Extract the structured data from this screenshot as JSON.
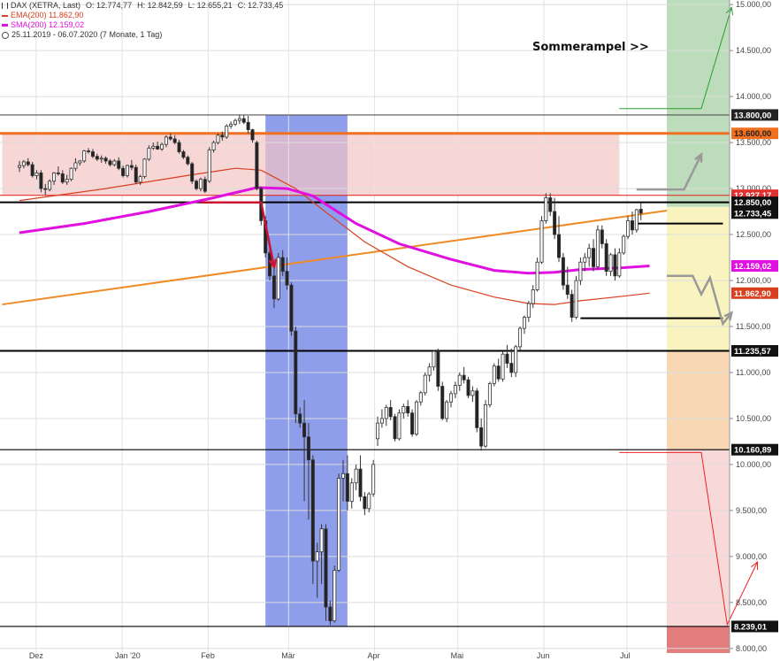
{
  "legend": {
    "instrument": "DAX (XETRA, Last)",
    "ohlc": [
      "O: 12.774,77",
      "H: 12.842,59",
      "L: 12.655,21",
      "C: 12.733,45"
    ],
    "ema": "EMA(200)",
    "ema_value": "11.862,90",
    "sma": "SMA(200)",
    "sma_value": "12.159,02",
    "period": "25.11.2019 - 06.07.2020",
    "period_note": "(7 Monate, 1 Tag)"
  },
  "annotation": "Sommerampel >>",
  "colors": {
    "candle_up": "#ffffff",
    "candle_down": "#222222",
    "ema": "#d9401f",
    "sma": "#e010e0",
    "trendline": "#f08a24",
    "resistance_orange": "#f07020",
    "red_arrow": "#cc1133",
    "blue_zone": "#7b8de8",
    "red_zone": "#f4c4c4",
    "green_zone": "#b2d6b0",
    "yellow_zone": "#f7f2b8",
    "orange_zone": "#f7d3ad"
  },
  "chart_data": {
    "type": "candlestick",
    "y_axis": {
      "min": 7950,
      "max": 15050,
      "ticks": [
        {
          "value": 15000,
          "label": "15.000,00"
        },
        {
          "value": 14500,
          "label": "14.500,00"
        },
        {
          "value": 14000,
          "label": "14.000,00"
        },
        {
          "value": 13500,
          "label": "13.500,00"
        },
        {
          "value": 13000,
          "label": "13.000,00"
        },
        {
          "value": 12500,
          "label": "12.500,00"
        },
        {
          "value": 12000,
          "label": "12.000,00"
        },
        {
          "value": 11500,
          "label": "11.500,00"
        },
        {
          "value": 11000,
          "label": "11.000,00"
        },
        {
          "value": 10500,
          "label": "10.500,00"
        },
        {
          "value": 10000,
          "label": "10.000,00"
        },
        {
          "value": 9500,
          "label": "9.500,00"
        },
        {
          "value": 9000,
          "label": "9.000,00"
        },
        {
          "value": 8500,
          "label": "8.500,00"
        },
        {
          "value": 8000,
          "label": "8.000,00"
        }
      ]
    },
    "x_axis": {
      "start": "2019-11-25",
      "end": "2020-07-06",
      "ticks": [
        {
          "date": "2019-12-01",
          "label": "Dez"
        },
        {
          "date": "2020-01-01",
          "label": "Jan '20"
        },
        {
          "date": "2020-02-01",
          "label": "Feb"
        },
        {
          "date": "2020-03-01",
          "label": "Mär"
        },
        {
          "date": "2020-04-01",
          "label": "Apr"
        },
        {
          "date": "2020-05-01",
          "label": "Mai"
        },
        {
          "date": "2020-06-01",
          "label": "Jun"
        },
        {
          "date": "2020-07-01",
          "label": "Jul"
        }
      ]
    },
    "levels": [
      {
        "value": 13800,
        "label": "13.800,00",
        "color": "#555555"
      },
      {
        "value": 13600,
        "label": "13.600,00",
        "color": "#f07020"
      },
      {
        "value": 12927,
        "label": "12.927,17",
        "color": "#e03030"
      },
      {
        "value": 12850,
        "label": "12.850,00",
        "color": "#000000"
      },
      {
        "value": 11235.57,
        "label": "11.235,57",
        "color": "#000000"
      },
      {
        "value": 10160.89,
        "label": "10.160,89",
        "color": "#000000"
      },
      {
        "value": 8239.01,
        "label": "8.239,01",
        "color": "#000000"
      }
    ],
    "current": {
      "value": 12733.45,
      "label": "12.733,45"
    },
    "sma_label": {
      "value": 12159.02,
      "label": "12.159,02"
    },
    "ema_label": {
      "value": 11862.9,
      "label": "11.862,90"
    },
    "candles": [
      [
        13230,
        13300,
        13180,
        13250
      ],
      [
        13250,
        13310,
        13220,
        13290
      ],
      [
        13290,
        13330,
        13240,
        13260
      ],
      [
        13260,
        13290,
        13120,
        13140
      ],
      [
        13140,
        13200,
        13100,
        13170
      ],
      [
        13170,
        13200,
        12960,
        13000
      ],
      [
        13000,
        13050,
        12930,
        12990
      ],
      [
        12990,
        13100,
        12970,
        13080
      ],
      [
        13080,
        13180,
        13040,
        13170
      ],
      [
        13170,
        13240,
        13140,
        13160
      ],
      [
        13160,
        13200,
        13050,
        13070
      ],
      [
        13070,
        13150,
        13040,
        13100
      ],
      [
        13100,
        13230,
        13080,
        13220
      ],
      [
        13220,
        13330,
        13190,
        13280
      ],
      [
        13280,
        13310,
        13250,
        13300
      ],
      [
        13300,
        13420,
        13280,
        13410
      ],
      [
        13410,
        13440,
        13380,
        13400
      ],
      [
        13400,
        13430,
        13330,
        13350
      ],
      [
        13350,
        13380,
        13300,
        13320
      ],
      [
        13320,
        13360,
        13280,
        13330
      ],
      [
        13330,
        13350,
        13270,
        13300
      ],
      [
        13300,
        13320,
        13240,
        13260
      ],
      [
        13260,
        13320,
        13240,
        13300
      ],
      [
        13300,
        13340,
        13200,
        13220
      ],
      [
        13220,
        13250,
        13120,
        13140
      ],
      [
        13140,
        13260,
        13120,
        13250
      ],
      [
        13250,
        13310,
        13200,
        13230
      ],
      [
        13230,
        13260,
        13050,
        13070
      ],
      [
        13070,
        13150,
        13040,
        13130
      ],
      [
        13130,
        13330,
        13110,
        13320
      ],
      [
        13320,
        13470,
        13300,
        13440
      ],
      [
        13440,
        13500,
        13420,
        13460
      ],
      [
        13460,
        13510,
        13420,
        13430
      ],
      [
        13430,
        13500,
        13410,
        13480
      ],
      [
        13480,
        13580,
        13450,
        13560
      ],
      [
        13560,
        13600,
        13520,
        13540
      ],
      [
        13540,
        13580,
        13480,
        13500
      ],
      [
        13500,
        13530,
        13380,
        13400
      ],
      [
        13400,
        13420,
        13320,
        13340
      ],
      [
        13340,
        13360,
        13250,
        13270
      ],
      [
        13270,
        13290,
        13050,
        13080
      ],
      [
        13080,
        13100,
        12980,
        13000
      ],
      [
        13000,
        13120,
        12970,
        13100
      ],
      [
        13100,
        13130,
        12950,
        12970
      ],
      [
        13080,
        13450,
        13060,
        13420
      ],
      [
        13420,
        13520,
        13390,
        13500
      ],
      [
        13500,
        13600,
        13480,
        13580
      ],
      [
        13580,
        13620,
        13520,
        13560
      ],
      [
        13560,
        13700,
        13540,
        13680
      ],
      [
        13680,
        13730,
        13650,
        13700
      ],
      [
        13700,
        13760,
        13680,
        13740
      ],
      [
        13740,
        13800,
        13700,
        13760
      ],
      [
        13760,
        13795,
        13700,
        13720
      ],
      [
        13720,
        13790,
        13600,
        13640
      ],
      [
        13640,
        13650,
        13500,
        13530
      ],
      [
        13500,
        13520,
        12980,
        13000
      ],
      [
        13000,
        13020,
        12600,
        12650
      ],
      [
        12650,
        12700,
        12250,
        12300
      ],
      [
        12300,
        12350,
        12000,
        12050
      ],
      [
        12050,
        12150,
        11700,
        11800
      ],
      [
        11800,
        12300,
        11780,
        12250
      ],
      [
        12250,
        12330,
        12050,
        12100
      ],
      [
        12100,
        12250,
        11900,
        11950
      ],
      [
        11950,
        11980,
        11400,
        11450
      ],
      [
        11450,
        11500,
        10450,
        10550
      ],
      [
        10550,
        10620,
        10400,
        10450
      ],
      [
        10450,
        10700,
        9600,
        10300
      ],
      [
        10300,
        10450,
        9400,
        10050
      ],
      [
        10050,
        10100,
        8700,
        8950
      ],
      [
        8950,
        9150,
        8550,
        9050
      ],
      [
        9050,
        9350,
        8700,
        9300
      ],
      [
        9300,
        9350,
        8300,
        8450
      ],
      [
        8450,
        8520,
        8255,
        8300
      ],
      [
        8300,
        8900,
        8280,
        8850
      ],
      [
        8850,
        9900,
        8830,
        9850
      ],
      [
        9850,
        10050,
        9600,
        9900
      ],
      [
        9900,
        10100,
        9500,
        9600
      ],
      [
        9600,
        9850,
        9520,
        9800
      ],
      [
        9800,
        10000,
        9720,
        9950
      ],
      [
        9950,
        10100,
        9600,
        9650
      ],
      [
        9650,
        9700,
        9450,
        9520
      ],
      [
        9520,
        9700,
        9480,
        9680
      ],
      [
        9680,
        10050,
        9650,
        10000
      ],
      [
        10280,
        10520,
        10200,
        10450
      ],
      [
        10450,
        10600,
        10400,
        10500
      ],
      [
        10500,
        10650,
        10420,
        10620
      ],
      [
        10620,
        10700,
        10480,
        10520
      ],
      [
        10520,
        10550,
        10250,
        10280
      ],
      [
        10280,
        10600,
        10260,
        10560
      ],
      [
        10560,
        10660,
        10500,
        10630
      ],
      [
        10630,
        10700,
        10520,
        10560
      ],
      [
        10560,
        10600,
        10300,
        10330
      ],
      [
        10330,
        10700,
        10310,
        10680
      ],
      [
        10680,
        10800,
        10640,
        10780
      ],
      [
        10780,
        11000,
        10750,
        10970
      ],
      [
        10970,
        11100,
        10900,
        11060
      ],
      [
        11060,
        11240,
        11020,
        11230
      ],
      [
        11230,
        11260,
        10800,
        10850
      ],
      [
        10850,
        10900,
        10480,
        10500
      ],
      [
        10500,
        10700,
        10460,
        10680
      ],
      [
        10680,
        10800,
        10620,
        10770
      ],
      [
        10770,
        10900,
        10720,
        10860
      ],
      [
        10860,
        11000,
        10800,
        10970
      ],
      [
        10970,
        11060,
        10880,
        10920
      ],
      [
        10920,
        10950,
        10720,
        10750
      ],
      [
        10750,
        10850,
        10680,
        10800
      ],
      [
        10800,
        10830,
        10350,
        10400
      ],
      [
        10400,
        10500,
        10150,
        10200
      ],
      [
        10200,
        10700,
        10180,
        10650
      ],
      [
        10650,
        10900,
        10620,
        10880
      ],
      [
        10880,
        11100,
        10850,
        11070
      ],
      [
        11070,
        11150,
        10900,
        10930
      ],
      [
        10930,
        11230,
        10900,
        11200
      ],
      [
        11200,
        11300,
        11050,
        11100
      ],
      [
        11100,
        11260,
        10950,
        11000
      ],
      [
        11000,
        11300,
        10950,
        11280
      ],
      [
        11280,
        11500,
        11240,
        11480
      ],
      [
        11480,
        11620,
        11420,
        11600
      ],
      [
        11600,
        11780,
        11550,
        11750
      ],
      [
        11750,
        11950,
        11700,
        11900
      ],
      [
        11900,
        12250,
        11880,
        12200
      ],
      [
        12200,
        12700,
        12180,
        12650
      ],
      [
        12650,
        12950,
        12620,
        12900
      ],
      [
        12900,
        12950,
        12700,
        12750
      ],
      [
        12750,
        12900,
        12450,
        12500
      ],
      [
        12500,
        12700,
        12200,
        12250
      ],
      [
        12250,
        12300,
        11900,
        11950
      ],
      [
        11950,
        12150,
        11800,
        11850
      ],
      [
        11850,
        11900,
        11550,
        11600
      ],
      [
        11600,
        12050,
        11580,
        12000
      ],
      [
        12000,
        12250,
        11950,
        12200
      ],
      [
        12200,
        12300,
        12100,
        12250
      ],
      [
        12250,
        12400,
        12150,
        12350
      ],
      [
        12350,
        12450,
        12100,
        12150
      ],
      [
        12150,
        12600,
        12120,
        12550
      ],
      [
        12550,
        12600,
        12350,
        12400
      ],
      [
        12400,
        12450,
        12050,
        12100
      ],
      [
        12100,
        12300,
        12050,
        12280
      ],
      [
        12280,
        12350,
        12000,
        12050
      ],
      [
        12050,
        12350,
        12030,
        12300
      ],
      [
        12300,
        12500,
        12280,
        12480
      ],
      [
        12480,
        12700,
        12450,
        12650
      ],
      [
        12650,
        12750,
        12500,
        12550
      ],
      [
        12550,
        12780,
        12520,
        12770
      ],
      [
        12774.77,
        12842.59,
        12655.21,
        12733.45
      ]
    ],
    "ema200": [
      [
        0,
        12870
      ],
      [
        20,
        13000
      ],
      [
        40,
        13150
      ],
      [
        50,
        13220
      ],
      [
        56,
        13200
      ],
      [
        60,
        13100
      ],
      [
        64,
        13000
      ],
      [
        70,
        12780
      ],
      [
        80,
        12420
      ],
      [
        90,
        12150
      ],
      [
        100,
        11950
      ],
      [
        110,
        11820
      ],
      [
        118,
        11750
      ],
      [
        124,
        11740
      ],
      [
        130,
        11780
      ],
      [
        140,
        11830
      ],
      [
        146,
        11863
      ]
    ],
    "sma200": [
      [
        0,
        12520
      ],
      [
        15,
        12620
      ],
      [
        30,
        12750
      ],
      [
        45,
        12900
      ],
      [
        55,
        13010
      ],
      [
        62,
        13000
      ],
      [
        68,
        12920
      ],
      [
        78,
        12620
      ],
      [
        88,
        12400
      ],
      [
        100,
        12230
      ],
      [
        110,
        12110
      ],
      [
        118,
        12080
      ],
      [
        124,
        12090
      ],
      [
        130,
        12120
      ],
      [
        140,
        12140
      ],
      [
        146,
        12159
      ]
    ],
    "trendline": {
      "from": [
        -4,
        11740
      ],
      "to": [
        150,
        12760
      ]
    },
    "zones": [
      {
        "kind": "blue",
        "from": 57,
        "to": 76,
        "y_from": 8239,
        "y_to": 13800
      },
      {
        "kind": "red",
        "from": -4,
        "to": 139,
        "y_from": 12927,
        "y_to": 13600
      },
      {
        "kind": "green",
        "from": 150,
        "to": 171,
        "y_from": 12800,
        "y_to": 15050
      },
      {
        "kind": "yellow",
        "from": 150,
        "to": 171,
        "y_from": 11235,
        "y_to": 12800
      },
      {
        "kind": "orange",
        "from": 150,
        "to": 171,
        "y_from": 10160,
        "y_to": 11235
      },
      {
        "kind": "pink",
        "from": 150,
        "to": 171,
        "y_from": 8239,
        "y_to": 10160
      },
      {
        "kind": "deepred",
        "from": 150,
        "to": 171,
        "y_from": 7950,
        "y_to": 8239
      }
    ],
    "scenario_paths": [
      {
        "kind": "green",
        "points": [
          [
            139,
            13870
          ],
          [
            158,
            13870
          ],
          [
            165,
            14970
          ]
        ]
      },
      {
        "kind": "gray",
        "points": [
          [
            143,
            12990
          ],
          [
            154,
            12990
          ],
          [
            158,
            13370
          ]
        ]
      },
      {
        "kind": "gray",
        "points": [
          [
            150,
            12050
          ],
          [
            156,
            12050
          ],
          [
            158,
            11850
          ],
          [
            160,
            12030
          ],
          [
            163,
            11530
          ],
          [
            165,
            11650
          ]
        ]
      },
      {
        "kind": "red",
        "points": [
          [
            139,
            10130
          ],
          [
            158,
            10130
          ],
          [
            164,
            8260
          ],
          [
            171,
            8940
          ]
        ]
      },
      {
        "kind": "darkred",
        "points": [
          [
            42,
            12850
          ],
          [
            56,
            12850
          ],
          [
            59,
            12150
          ]
        ]
      }
    ],
    "support_marks": [
      {
        "from": 143,
        "to": 163,
        "value": 12620,
        "color": "#000000"
      },
      {
        "from": 130,
        "to": 163,
        "value": 11590,
        "color": "#000000"
      }
    ]
  }
}
